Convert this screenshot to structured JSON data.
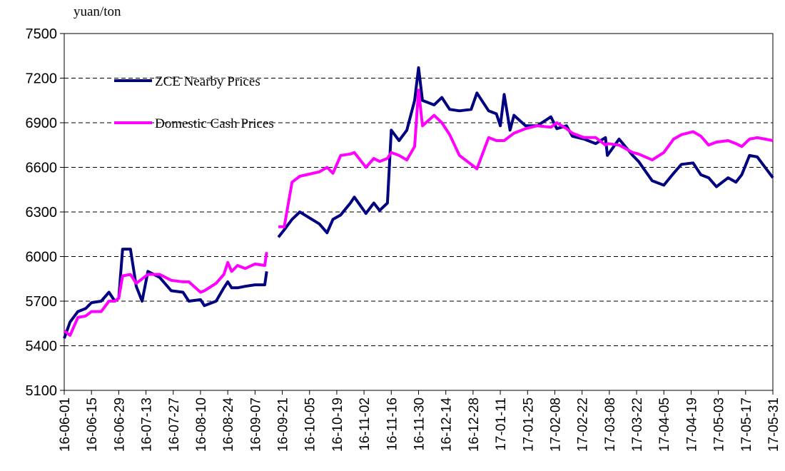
{
  "chart_data": {
    "type": "line",
    "y_label": "yuan/ton",
    "x": [
      "16-06-01",
      "16-06-04",
      "16-06-08",
      "16-06-12",
      "16-06-15",
      "16-06-20",
      "16-06-24",
      "16-06-27",
      "16-06-29",
      "16-07-01",
      "16-07-05",
      "16-07-08",
      "16-07-11",
      "16-07-14",
      "16-07-20",
      "16-07-26",
      "16-08-01",
      "16-08-04",
      "16-08-10",
      "16-08-12",
      "16-08-18",
      "16-08-22",
      "16-08-24",
      "16-08-26",
      "16-08-29",
      "16-09-02",
      "16-09-07",
      "16-09-12",
      "16-09-13",
      "16-09-16",
      "16-09-19",
      "16-09-22",
      "16-09-26",
      "16-09-30",
      "16-10-10",
      "16-10-14",
      "16-10-17",
      "16-10-21",
      "16-10-26",
      "16-10-28",
      "16-11-03",
      "16-11-07",
      "16-11-10",
      "16-11-14",
      "16-11-16",
      "16-11-20",
      "16-11-24",
      "16-11-28",
      "16-11-30",
      "16-12-02",
      "16-12-08",
      "16-12-12",
      "16-12-16",
      "16-12-21",
      "16-12-27",
      "16-12-30",
      "17-01-05",
      "17-01-09",
      "17-01-11",
      "17-01-13",
      "17-01-16",
      "17-01-18",
      "17-01-24",
      "17-01-30",
      "17-02-06",
      "17-02-09",
      "17-02-14",
      "17-02-17",
      "17-02-23",
      "17-03-01",
      "17-03-06",
      "17-03-07",
      "17-03-13",
      "17-03-20",
      "17-03-23",
      "17-03-30",
      "17-04-05",
      "17-04-10",
      "17-04-14",
      "17-04-20",
      "17-04-24",
      "17-04-28",
      "17-05-02",
      "17-05-08",
      "17-05-12",
      "17-05-15",
      "17-05-19",
      "17-05-23",
      "17-05-31"
    ],
    "series": [
      {
        "name": "ZCE Nearby Prices",
        "color": "#000080",
        "values": [
          5450,
          5560,
          5630,
          5650,
          5690,
          5700,
          5760,
          5700,
          5720,
          6050,
          6050,
          5800,
          5700,
          5900,
          5860,
          5770,
          5760,
          5700,
          5710,
          5670,
          5700,
          5790,
          5830,
          5790,
          5790,
          5800,
          5810,
          5810,
          5900,
          null,
          6130,
          6180,
          6250,
          6300,
          6220,
          6160,
          6250,
          6280,
          6360,
          6400,
          6290,
          6360,
          6310,
          6360,
          6850,
          6780,
          6850,
          7050,
          7270,
          7050,
          7020,
          7070,
          6990,
          6980,
          6990,
          7100,
          6980,
          6960,
          6880,
          7090,
          6850,
          6950,
          6880,
          6880,
          6940,
          6860,
          6880,
          6810,
          6790,
          6760,
          6800,
          6680,
          6790,
          6680,
          6640,
          6510,
          6480,
          6560,
          6620,
          6630,
          6550,
          6530,
          6470,
          6530,
          6500,
          6550,
          6680,
          6670,
          6530
        ]
      },
      {
        "name": "Domestic Cash Prices",
        "color": "#ff00ff",
        "values": [
          5500,
          5470,
          5590,
          5600,
          5630,
          5630,
          5700,
          5700,
          5720,
          5870,
          5880,
          5820,
          5850,
          5880,
          5880,
          5840,
          5830,
          5830,
          5760,
          5770,
          5820,
          5880,
          5960,
          5900,
          5940,
          5920,
          5950,
          5940,
          6030,
          null,
          6200,
          6200,
          6500,
          6540,
          6570,
          6600,
          6560,
          6680,
          6690,
          6700,
          6600,
          6660,
          6640,
          6660,
          6700,
          6680,
          6650,
          6740,
          7120,
          6880,
          6950,
          6900,
          6820,
          6680,
          6620,
          6590,
          6800,
          6780,
          6780,
          6780,
          6810,
          6830,
          6860,
          6880,
          6870,
          6900,
          6860,
          6830,
          6800,
          6800,
          6750,
          6760,
          6750,
          6700,
          6690,
          6650,
          6700,
          6790,
          6820,
          6840,
          6810,
          6750,
          6770,
          6780,
          6760,
          6740,
          6790,
          6800,
          6780
        ]
      }
    ],
    "xlim": [
      "16-06-01",
      "17-05-31"
    ],
    "xticks": [
      "16-06-01",
      "16-06-15",
      "16-06-29",
      "16-07-13",
      "16-07-27",
      "16-08-10",
      "16-08-24",
      "16-09-07",
      "16-09-21",
      "16-10-05",
      "16-10-19",
      "16-11-02",
      "16-11-16",
      "16-11-30",
      "16-12-14",
      "16-12-28",
      "17-01-11",
      "17-01-25",
      "17-02-08",
      "17-02-22",
      "17-03-08",
      "17-03-22",
      "17-04-05",
      "17-04-19",
      "17-05-03",
      "17-05-17",
      "17-05-31"
    ],
    "ylim": [
      5100,
      7500
    ],
    "yticks": [
      5100,
      5400,
      5700,
      6000,
      6300,
      6600,
      6900,
      7200,
      7500
    ],
    "grid": true,
    "legend": "upper left"
  }
}
